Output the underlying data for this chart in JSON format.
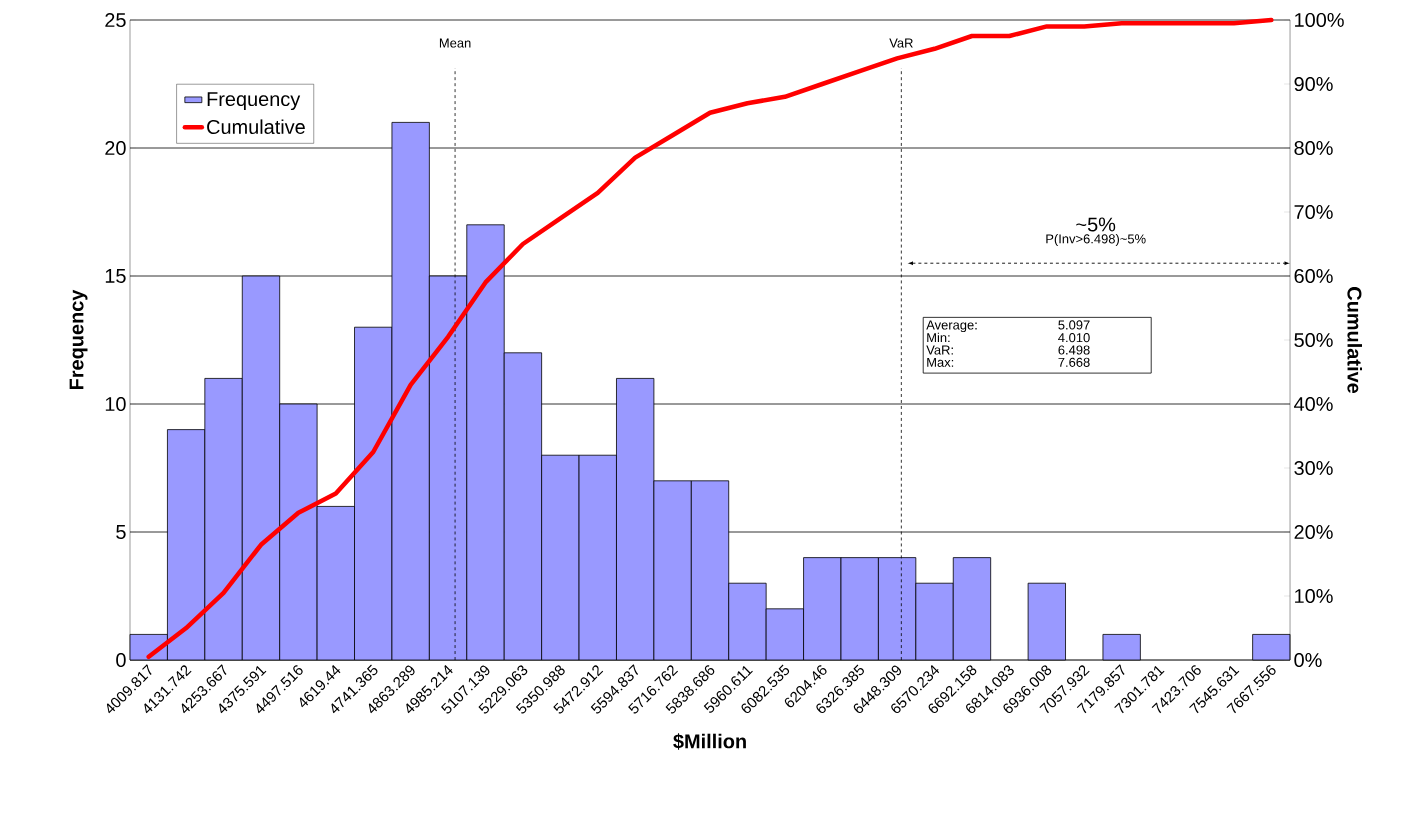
{
  "chart_data": {
    "type": "bar",
    "xlabel": "$Million",
    "ylabel": "Frequency",
    "y2label": "Cumulative",
    "x": [
      4009.817,
      4131.742,
      4253.667,
      4375.591,
      4497.516,
      4619.44,
      4741.365,
      4863.289,
      4985.214,
      5107.139,
      5229.063,
      5350.988,
      5472.912,
      5594.837,
      5716.762,
      5838.686,
      5960.611,
      6082.535,
      6204.46,
      6326.385,
      6448.309,
      6570.234,
      6692.158,
      6814.083,
      6936.008,
      7057.932,
      7179.857,
      7301.781,
      7423.706,
      7545.631,
      7667.556
    ],
    "xlim": [
      3948.855,
      7728.518
    ],
    "xticks": [
      4009.817,
      4131.742,
      4253.667,
      4375.591,
      4497.516,
      4619.44,
      4741.365,
      4863.289,
      4985.214,
      5107.139,
      5229.063,
      5350.988,
      5472.912,
      5594.837,
      5716.762,
      5838.686,
      5960.611,
      6082.535,
      6204.46,
      6326.385,
      6448.309,
      6570.234,
      6692.158,
      6814.083,
      6936.008,
      7057.932,
      7179.857,
      7301.781,
      7423.706,
      7545.631,
      7667.556
    ],
    "ylim": [
      0,
      25
    ],
    "yticks": [
      0,
      5,
      10,
      15,
      20,
      25
    ],
    "y2lim": [
      0,
      100
    ],
    "y2ticks": [
      {
        "value": 0,
        "label": "0%"
      },
      {
        "value": 10,
        "label": "10%"
      },
      {
        "value": 20,
        "label": "20%"
      },
      {
        "value": 30,
        "label": "30%"
      },
      {
        "value": 40,
        "label": "40%"
      },
      {
        "value": 50,
        "label": "50%"
      },
      {
        "value": 60,
        "label": "60%"
      },
      {
        "value": 70,
        "label": "70%"
      },
      {
        "value": 80,
        "label": "80%"
      },
      {
        "value": 90,
        "label": "90%"
      },
      {
        "value": 100,
        "label": "100%"
      }
    ],
    "series": [
      {
        "name": "Frequency",
        "color": "#9999ff",
        "values": [
          1,
          9,
          11,
          15,
          10,
          6,
          13,
          21,
          15,
          17,
          12,
          8,
          8,
          11,
          7,
          7,
          3,
          2,
          4,
          4,
          4,
          3,
          4,
          0,
          3,
          0,
          1,
          0,
          0,
          0,
          1
        ]
      },
      {
        "name": "Cumulative",
        "type": "line",
        "axis": "y2",
        "color": "#ff0000",
        "values": [
          0.5,
          5,
          10.5,
          18,
          23,
          26,
          32.5,
          43,
          50.5,
          59,
          65,
          69,
          73,
          78.5,
          82,
          85.5,
          87,
          88,
          90,
          92,
          94,
          95.5,
          97.5,
          97.5,
          99,
          99,
          99.5,
          99.5,
          99.5,
          99.5,
          100
        ]
      }
    ],
    "ref_lines": [
      {
        "axis": "x",
        "value": 5008,
        "label": "Mean",
        "line_style": "dashed"
      },
      {
        "axis": "x",
        "value": 6462,
        "label": "VaR",
        "line_style": "dashed"
      }
    ],
    "annotations": [
      "~5%",
      "P(Inv>6.498)~5%",
      "Average:",
      "5.097",
      "Min:",
      "4.010",
      "VaR:",
      "6.498",
      "Max:",
      "7.668"
    ],
    "grid": "y",
    "legend": "left"
  }
}
